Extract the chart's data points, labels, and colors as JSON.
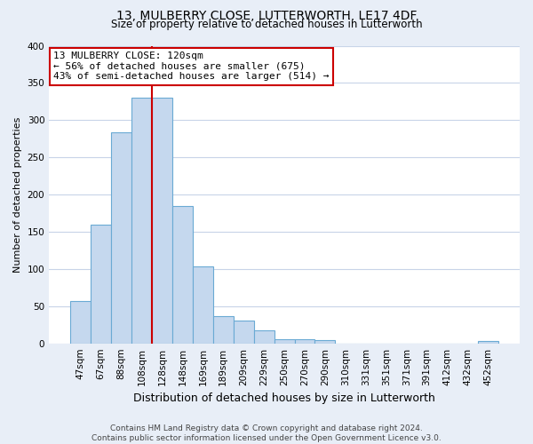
{
  "title": "13, MULBERRY CLOSE, LUTTERWORTH, LE17 4DF",
  "subtitle": "Size of property relative to detached houses in Lutterworth",
  "xlabel": "Distribution of detached houses by size in Lutterworth",
  "ylabel": "Number of detached properties",
  "bar_labels": [
    "47sqm",
    "67sqm",
    "88sqm",
    "108sqm",
    "128sqm",
    "148sqm",
    "169sqm",
    "189sqm",
    "209sqm",
    "229sqm",
    "250sqm",
    "270sqm",
    "290sqm",
    "310sqm",
    "331sqm",
    "351sqm",
    "371sqm",
    "391sqm",
    "412sqm",
    "432sqm",
    "452sqm"
  ],
  "bar_values": [
    57,
    160,
    284,
    330,
    330,
    185,
    103,
    37,
    31,
    18,
    6,
    5,
    4,
    0,
    0,
    0,
    0,
    0,
    0,
    0,
    3
  ],
  "bar_color": "#c5d8ee",
  "bar_edge_color": "#6aaad4",
  "ylim": [
    0,
    400
  ],
  "yticks": [
    0,
    50,
    100,
    150,
    200,
    250,
    300,
    350,
    400
  ],
  "vline_index": 4,
  "vline_color": "#cc0000",
  "annotation_title": "13 MULBERRY CLOSE: 120sqm",
  "annotation_line1": "← 56% of detached houses are smaller (675)",
  "annotation_line2": "43% of semi-detached houses are larger (514) →",
  "annotation_box_color": "#ffffff",
  "annotation_box_edge": "#cc0000",
  "footer_line1": "Contains HM Land Registry data © Crown copyright and database right 2024.",
  "footer_line2": "Contains public sector information licensed under the Open Government Licence v3.0.",
  "background_color": "#e8eef7",
  "plot_background": "#ffffff",
  "grid_color": "#c8d4e8",
  "title_fontsize": 10,
  "subtitle_fontsize": 8.5,
  "ylabel_fontsize": 8,
  "xlabel_fontsize": 9,
  "tick_fontsize": 7.5,
  "ann_fontsize": 8,
  "footer_fontsize": 6.5
}
